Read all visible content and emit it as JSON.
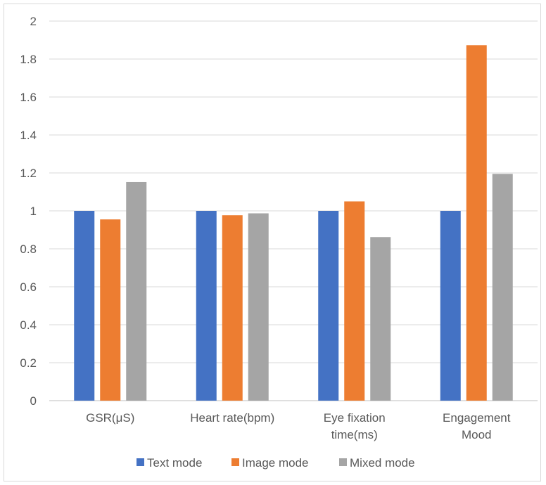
{
  "chart_data": {
    "type": "bar",
    "title": "",
    "xlabel": "",
    "ylabel": "",
    "ylim": [
      0,
      2
    ],
    "yticks": [
      "0",
      "0.2",
      "0.4",
      "0.6",
      "0.8",
      "1",
      "1.2",
      "1.4",
      "1.6",
      "1.8",
      "2"
    ],
    "grid": "horizontal",
    "legend_position": "bottom",
    "categories": [
      [
        "GSR(μS)"
      ],
      [
        "Heart rate(bpm)"
      ],
      [
        "Eye fixation",
        "time(ms)"
      ],
      [
        "Engagement",
        "Mood"
      ]
    ],
    "series": [
      {
        "name": "Text mode",
        "color": "#4472C4",
        "values": [
          1.0,
          1.0,
          1.0,
          1.0
        ]
      },
      {
        "name": "Image mode",
        "color": "#ED7D31",
        "values": [
          0.955,
          0.977,
          1.05,
          1.873
        ]
      },
      {
        "name": "Mixed mode",
        "color": "#A5A5A5",
        "values": [
          1.152,
          0.987,
          0.862,
          1.195
        ]
      }
    ]
  }
}
